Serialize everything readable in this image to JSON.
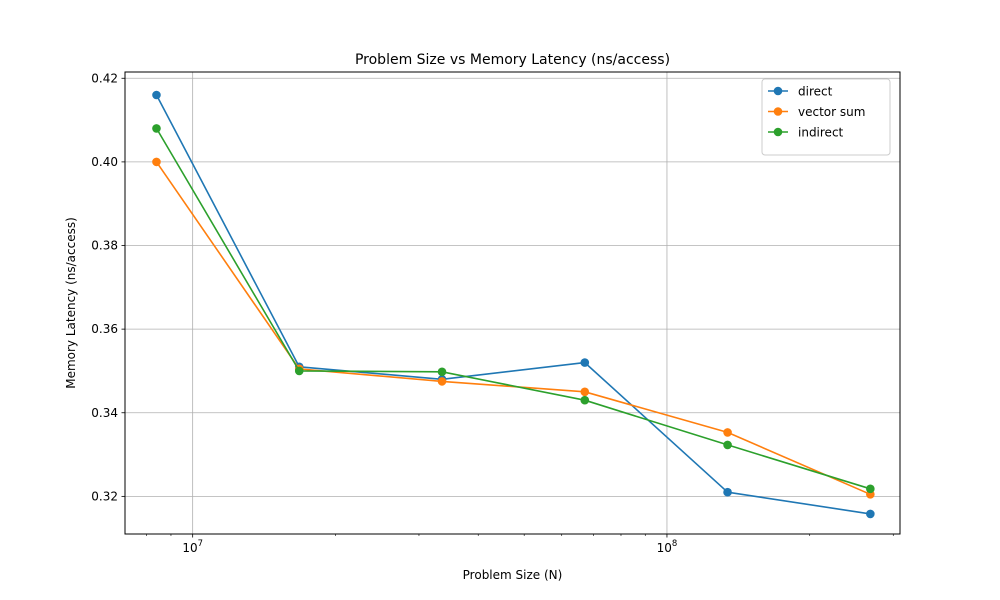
{
  "chart_data": {
    "type": "line",
    "title": "Problem Size vs Memory Latency (ns/access)",
    "xlabel": "Problem Size (N)",
    "ylabel": "Memory Latency (ns/access)",
    "xscale": "log",
    "xlim": [
      7200000,
      310000000
    ],
    "ylim": [
      0.311,
      0.4215
    ],
    "x_ticks": [
      {
        "value": 10000000,
        "base": "10",
        "exp": "7"
      },
      {
        "value": 100000000,
        "base": "10",
        "exp": "8"
      }
    ],
    "y_ticks": [
      {
        "value": 0.32,
        "label": "0.32"
      },
      {
        "value": 0.34,
        "label": "0.34"
      },
      {
        "value": 0.36,
        "label": "0.36"
      },
      {
        "value": 0.38,
        "label": "0.38"
      },
      {
        "value": 0.4,
        "label": "0.40"
      },
      {
        "value": 0.42,
        "label": "0.42"
      }
    ],
    "grid": true,
    "legend_position": "top-right",
    "x": [
      8388608,
      16777216,
      33554432,
      67108864,
      134217728,
      268435456
    ],
    "series": [
      {
        "name": "direct",
        "color": "#1f77b4",
        "values": [
          0.416,
          0.351,
          0.348,
          0.352,
          0.321,
          0.3158
        ]
      },
      {
        "name": "vector sum",
        "color": "#ff7f0e",
        "values": [
          0.4,
          0.3505,
          0.3475,
          0.345,
          0.3353,
          0.3205
        ]
      },
      {
        "name": "indirect",
        "color": "#2ca02c",
        "values": [
          0.408,
          0.35,
          0.3498,
          0.343,
          0.3323,
          0.3218
        ]
      }
    ]
  }
}
